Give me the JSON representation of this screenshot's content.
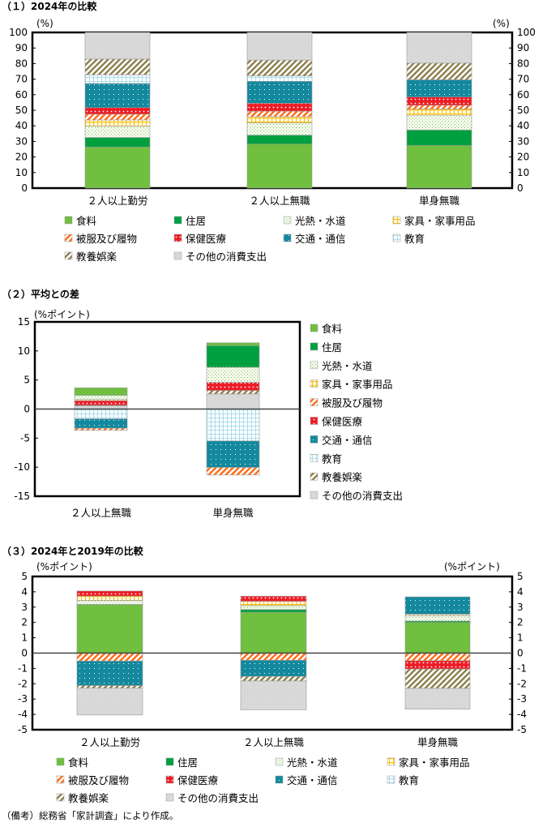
{
  "legend": [
    "食料",
    "住居",
    "光熱・水道",
    "家具・家事用品",
    "被服及び履物",
    "保健医療",
    "交通・通信",
    "教育",
    "教養娯楽",
    "その他の消費支出"
  ],
  "colors": {
    "food": "#70bf3f",
    "housing": "#00a040",
    "utilities": "#a9d68a",
    "furniture": "#ffc000",
    "clothing": "#ff6a13",
    "medical": "#ee1c25",
    "transport": "#14899e",
    "education": "#a8dcec",
    "culture": "#8b7d4a",
    "other": "#d9d9d9"
  },
  "note": "（備考）総務省「家計調査」により作成。",
  "chart_data": [
    {
      "type": "bar",
      "stacked": true,
      "title": "（１）2024年の比較",
      "ylabel_left": "(%)",
      "ylabel_right": "(%)",
      "ylim": [
        0,
        100
      ],
      "yticks": [
        "0",
        "10",
        "20",
        "30",
        "40",
        "50",
        "60",
        "70",
        "80",
        "90",
        "100"
      ],
      "categories": [
        "２人以上勤労",
        "２人以上無職",
        "単身無職"
      ],
      "series": [
        {
          "name": "食料",
          "values": [
            26.4,
            28.3,
            27.4
          ]
        },
        {
          "name": "住居",
          "values": [
            6.1,
            5.7,
            9.9
          ]
        },
        {
          "name": "光熱・水道",
          "values": [
            7.3,
            7.9,
            9.5
          ]
        },
        {
          "name": "家具・家事用品",
          "values": [
            4.0,
            4.0,
            4.0
          ]
        },
        {
          "name": "被服及び履物",
          "values": [
            3.7,
            3.5,
            2.4
          ]
        },
        {
          "name": "保健医療",
          "values": [
            4.2,
            5.1,
            5.3
          ]
        },
        {
          "name": "交通・通信",
          "values": [
            15.5,
            14.1,
            11.1
          ]
        },
        {
          "name": "教育",
          "values": [
            5.6,
            3.5,
            0.0
          ]
        },
        {
          "name": "教養娯楽",
          "values": [
            10.1,
            10.1,
            10.7
          ]
        },
        {
          "name": "その他の消費支出",
          "values": [
            17.1,
            17.8,
            19.7
          ]
        }
      ],
      "grid": false,
      "legend_position": "bottom"
    },
    {
      "type": "bar",
      "stacked": true,
      "title": "（２）平均との差",
      "ylabel_left": "(%ポイント)",
      "ylim": [
        -15,
        15
      ],
      "yticks": [
        "-15",
        "-10",
        "-5",
        "0",
        "5",
        "10",
        "15"
      ],
      "categories": [
        "２人以上無職",
        "単身無職"
      ],
      "series": [
        {
          "name": "食料",
          "values": [
            1.3,
            0.5
          ]
        },
        {
          "name": "住居",
          "values": [
            0.0,
            3.7
          ]
        },
        {
          "name": "光熱・水道",
          "values": [
            0.7,
            2.6
          ]
        },
        {
          "name": "家具・家事用品",
          "values": [
            0.2,
            0.0
          ]
        },
        {
          "name": "被服及び履物",
          "values": [
            -0.35,
            -1.3
          ]
        },
        {
          "name": "保健医療",
          "values": [
            0.8,
            1.4
          ]
        },
        {
          "name": "交通・通信",
          "values": [
            -1.6,
            -4.55
          ]
        },
        {
          "name": "教育",
          "values": [
            -1.7,
            -5.5
          ]
        },
        {
          "name": "教養娯楽",
          "values": [
            0.1,
            0.6
          ]
        },
        {
          "name": "その他の消費支出",
          "values": [
            0.55,
            2.6
          ]
        }
      ],
      "grid": false,
      "legend_position": "right"
    },
    {
      "type": "bar",
      "stacked": true,
      "title": "（３）2024年と2019年の比較",
      "ylabel_left": "(%ポイント)",
      "ylabel_right": "(%ポイント)",
      "ylim": [
        -5,
        5
      ],
      "yticks": [
        "-5",
        "-4",
        "-3",
        "-2",
        "-1",
        "0",
        "1",
        "2",
        "3",
        "4",
        "5"
      ],
      "categories": [
        "２人以上勤労",
        "２人以上無職",
        "単身無職"
      ],
      "series": [
        {
          "name": "食料",
          "values": [
            3.16,
            2.67,
            2.0
          ]
        },
        {
          "name": "住居",
          "values": [
            0.02,
            0.17,
            0.09
          ]
        },
        {
          "name": "光熱・水道",
          "values": [
            0.26,
            0.26,
            0.35
          ]
        },
        {
          "name": "家具・家事用品",
          "values": [
            0.28,
            0.28,
            0.1
          ]
        },
        {
          "name": "被服及び履物",
          "values": [
            -0.52,
            -0.47,
            -0.5
          ]
        },
        {
          "name": "保健医療",
          "values": [
            0.33,
            0.33,
            -0.54
          ]
        },
        {
          "name": "交通・通信",
          "values": [
            -1.6,
            -1.05,
            1.13
          ]
        },
        {
          "name": "教育",
          "values": [
            0.0,
            0.0,
            0.0
          ]
        },
        {
          "name": "教養娯楽",
          "values": [
            -0.17,
            -0.3,
            -1.26
          ]
        },
        {
          "name": "その他の消費支出",
          "values": [
            -1.75,
            -1.88,
            -1.36
          ]
        }
      ],
      "grid": false,
      "legend_position": "bottom"
    }
  ]
}
